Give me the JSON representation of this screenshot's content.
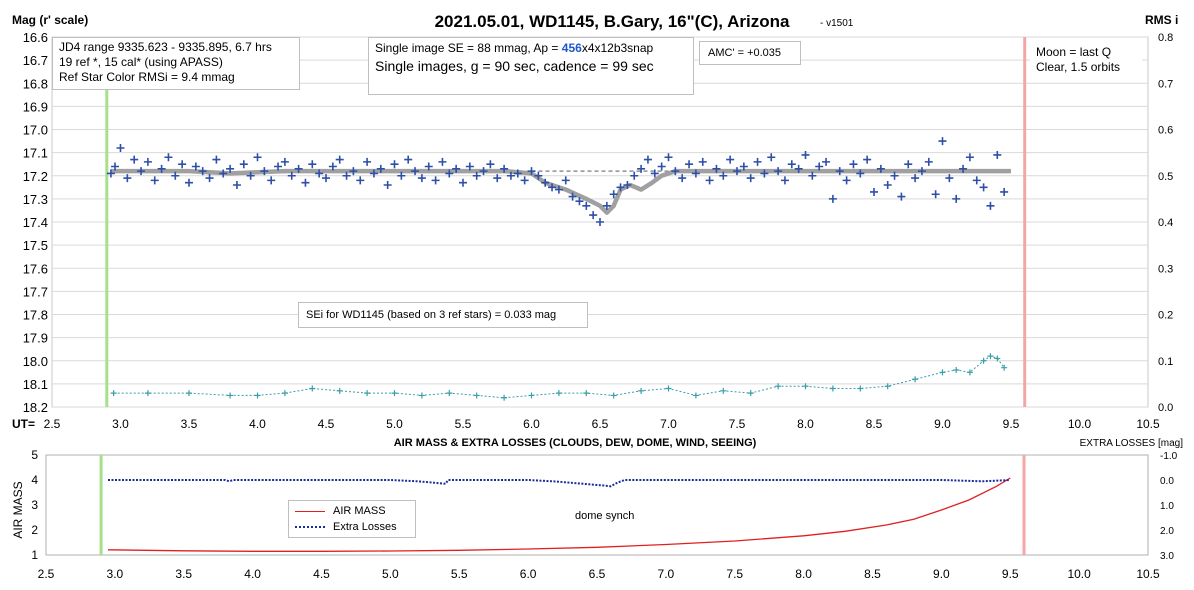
{
  "chart_data": [
    {
      "type": "scatter",
      "title": "2021.05.01, WD1145, B.Gary, 16\"(C), Arizona",
      "version_tag": "- v1501",
      "ylabel_left": "Mag (r' scale)",
      "ylabel_right": "RMS i",
      "x_axis_prefix": "UT=",
      "xlim": [
        2.5,
        10.5
      ],
      "x_ticks": [
        "2.5",
        "3.0",
        "3.5",
        "4.0",
        "4.5",
        "5.0",
        "5.5",
        "6.0",
        "6.5",
        "7.0",
        "7.5",
        "8.0",
        "8.5",
        "9.0",
        "9.5",
        "10.0",
        "10.5"
      ],
      "ylim_left": [
        16.6,
        18.2
      ],
      "y_ticks_left": [
        "16.6",
        "16.7",
        "16.8",
        "16.9",
        "17.0",
        "17.1",
        "17.2",
        "17.3",
        "17.4",
        "17.5",
        "17.6",
        "17.7",
        "17.8",
        "17.9",
        "18.0",
        "18.1",
        "18.2"
      ],
      "ylim_right": [
        0.0,
        0.8
      ],
      "y_ticks_right": [
        "0.8",
        "0.7",
        "0.6",
        "0.5",
        "0.4",
        "0.3",
        "0.2",
        "0.1",
        "0.0"
      ],
      "grid": true,
      "start_marker_ut": 2.9,
      "end_marker_ut": 9.6,
      "reference_level_mag": 17.18,
      "model_dip_ut": [
        6.0,
        7.1
      ],
      "series": [
        {
          "name": "WD1145 mag",
          "color": "#2e4fa8",
          "marker": "+",
          "x": [
            2.93,
            2.96,
            3.0,
            3.05,
            3.1,
            3.15,
            3.2,
            3.25,
            3.3,
            3.35,
            3.4,
            3.45,
            3.5,
            3.55,
            3.6,
            3.65,
            3.7,
            3.75,
            3.8,
            3.85,
            3.9,
            3.95,
            4.0,
            4.05,
            4.1,
            4.15,
            4.2,
            4.25,
            4.3,
            4.35,
            4.4,
            4.45,
            4.5,
            4.55,
            4.6,
            4.65,
            4.7,
            4.75,
            4.8,
            4.85,
            4.9,
            4.95,
            5.0,
            5.05,
            5.1,
            5.15,
            5.2,
            5.25,
            5.3,
            5.35,
            5.4,
            5.45,
            5.5,
            5.55,
            5.6,
            5.65,
            5.7,
            5.75,
            5.8,
            5.85,
            5.9,
            5.95,
            6.0,
            6.05,
            6.1,
            6.15,
            6.2,
            6.25,
            6.3,
            6.35,
            6.4,
            6.45,
            6.5,
            6.55,
            6.6,
            6.65,
            6.7,
            6.75,
            6.8,
            6.85,
            6.9,
            6.95,
            7.0,
            7.05,
            7.1,
            7.15,
            7.2,
            7.25,
            7.3,
            7.35,
            7.4,
            7.45,
            7.5,
            7.55,
            7.6,
            7.65,
            7.7,
            7.75,
            7.8,
            7.85,
            7.9,
            7.95,
            8.0,
            8.05,
            8.1,
            8.15,
            8.2,
            8.25,
            8.3,
            8.35,
            8.4,
            8.45,
            8.5,
            8.55,
            8.6,
            8.65,
            8.7,
            8.75,
            8.8,
            8.85,
            8.9,
            8.95,
            9.0,
            9.05,
            9.1,
            9.15,
            9.2,
            9.25,
            9.3,
            9.35,
            9.4,
            9.45
          ],
          "y": [
            17.19,
            17.16,
            17.08,
            17.21,
            17.13,
            17.18,
            17.14,
            17.22,
            17.17,
            17.12,
            17.2,
            17.15,
            17.23,
            17.16,
            17.18,
            17.21,
            17.13,
            17.19,
            17.17,
            17.24,
            17.15,
            17.2,
            17.12,
            17.18,
            17.22,
            17.16,
            17.14,
            17.2,
            17.17,
            17.23,
            17.15,
            17.19,
            17.21,
            17.16,
            17.13,
            17.2,
            17.18,
            17.22,
            17.14,
            17.19,
            17.17,
            17.24,
            17.15,
            17.2,
            17.13,
            17.18,
            17.21,
            17.16,
            17.22,
            17.14,
            17.19,
            17.17,
            17.23,
            17.16,
            17.2,
            17.18,
            17.15,
            17.21,
            17.17,
            17.2,
            17.19,
            17.22,
            17.18,
            17.2,
            17.23,
            17.25,
            17.26,
            17.22,
            17.29,
            17.31,
            17.33,
            17.37,
            17.4,
            17.33,
            17.28,
            17.25,
            17.24,
            17.2,
            17.17,
            17.13,
            17.19,
            17.16,
            17.12,
            17.18,
            17.21,
            17.15,
            17.19,
            17.14,
            17.22,
            17.17,
            17.2,
            17.13,
            17.18,
            17.16,
            17.21,
            17.14,
            17.19,
            17.12,
            17.18,
            17.22,
            17.15,
            17.17,
            17.11,
            17.2,
            17.16,
            17.14,
            17.3,
            17.18,
            17.22,
            17.15,
            17.19,
            17.13,
            17.27,
            17.17,
            17.24,
            17.2,
            17.29,
            17.15,
            17.21,
            17.18,
            17.14,
            17.28,
            17.05,
            17.21,
            17.3,
            17.17,
            17.12,
            17.22,
            17.25,
            17.33,
            17.11,
            17.27
          ]
        },
        {
          "name": "RMS i",
          "color": "#3a9ea8",
          "marker": "+",
          "x": [
            2.95,
            3.2,
            3.5,
            3.8,
            4.0,
            4.2,
            4.4,
            4.6,
            4.8,
            5.0,
            5.2,
            5.4,
            5.6,
            5.8,
            6.0,
            6.2,
            6.4,
            6.6,
            6.8,
            7.0,
            7.2,
            7.4,
            7.6,
            7.8,
            8.0,
            8.2,
            8.4,
            8.6,
            8.8,
            9.0,
            9.1,
            9.2,
            9.3,
            9.35,
            9.4,
            9.45
          ],
          "y": [
            0.03,
            0.03,
            0.03,
            0.025,
            0.025,
            0.03,
            0.04,
            0.035,
            0.03,
            0.03,
            0.025,
            0.03,
            0.025,
            0.02,
            0.025,
            0.03,
            0.03,
            0.025,
            0.035,
            0.04,
            0.025,
            0.035,
            0.03,
            0.045,
            0.045,
            0.04,
            0.04,
            0.045,
            0.06,
            0.075,
            0.08,
            0.075,
            0.1,
            0.11,
            0.105,
            0.085
          ]
        }
      ],
      "annotations": {
        "jd_box": [
          "JD4 range 9335.623 - 9335.895, 6.7 hrs",
          "19 ref *, 15 cal* (using APASS)",
          "Ref Star Color RMSi = 9.4 mmag"
        ],
        "se_line1_prefix": "Single image SE = 88 mmag, Ap = ",
        "se_line1_highlight": "456",
        "se_line1_suffix": "x4x12b3snap",
        "se_line2": "Single images, g = 90 sec, cadence = 99 sec",
        "amc": "AMC' = +0.035",
        "moon": [
          "Moon = last Q",
          "Clear, 1.5 orbits"
        ],
        "sei": "SEi for WD1145 (based on 3 ref stars) = 0.033 mag"
      }
    },
    {
      "type": "line",
      "title": "AIR MASS & EXTRA LOSSES (CLOUDS, DEW, DOME, WIND, SEEING)",
      "ylabel_left": "AIR MASS",
      "ylabel_right": "EXTRA LOSSES [mag]",
      "xlim": [
        2.5,
        10.5
      ],
      "x_ticks": [
        "2.5",
        "3.0",
        "3.5",
        "4.0",
        "4.5",
        "5.0",
        "5.5",
        "6.0",
        "6.5",
        "7.0",
        "7.5",
        "8.0",
        "8.5",
        "9.0",
        "9.5",
        "10.0",
        "10.5"
      ],
      "ylim_left": [
        1,
        5
      ],
      "y_ticks_left": [
        "5",
        "4",
        "3",
        "2",
        "1"
      ],
      "ylim_right": [
        -1.0,
        3.0
      ],
      "y_ticks_right": [
        "-1.0",
        "0.0",
        "1.0",
        "2.0",
        "3.0"
      ],
      "start_marker_ut": 2.9,
      "end_marker_ut": 9.6,
      "series": [
        {
          "name": "AIR MASS",
          "color": "#e02020",
          "style": "solid",
          "x": [
            2.95,
            3.5,
            4.0,
            4.5,
            5.0,
            5.5,
            6.0,
            6.5,
            7.0,
            7.5,
            8.0,
            8.3,
            8.6,
            8.8,
            9.0,
            9.2,
            9.4,
            9.5
          ],
          "y": [
            1.21,
            1.17,
            1.15,
            1.15,
            1.16,
            1.19,
            1.24,
            1.31,
            1.42,
            1.56,
            1.77,
            1.95,
            2.2,
            2.43,
            2.8,
            3.2,
            3.75,
            4.08
          ]
        },
        {
          "name": "Extra Losses",
          "color": "#1a2c9c",
          "style": "dotted",
          "x": [
            2.95,
            3.5,
            3.8,
            3.83,
            3.86,
            4.0,
            4.5,
            5.0,
            5.2,
            5.3,
            5.4,
            5.42,
            5.5,
            6.0,
            6.2,
            6.4,
            6.5,
            6.55,
            6.6,
            6.65,
            6.7,
            7.0,
            8.0,
            9.0,
            9.3,
            9.5
          ],
          "y": [
            0,
            0,
            0,
            0.05,
            0,
            0,
            0,
            0,
            0.05,
            0.1,
            0.15,
            0,
            0,
            0,
            0.06,
            0.15,
            0.2,
            0.22,
            0.25,
            0.1,
            0,
            0,
            0,
            0,
            0.05,
            0
          ]
        }
      ],
      "legend": [
        "AIR MASS",
        "Extra Losses"
      ],
      "annotations": {
        "dome": "dome synch"
      }
    }
  ]
}
